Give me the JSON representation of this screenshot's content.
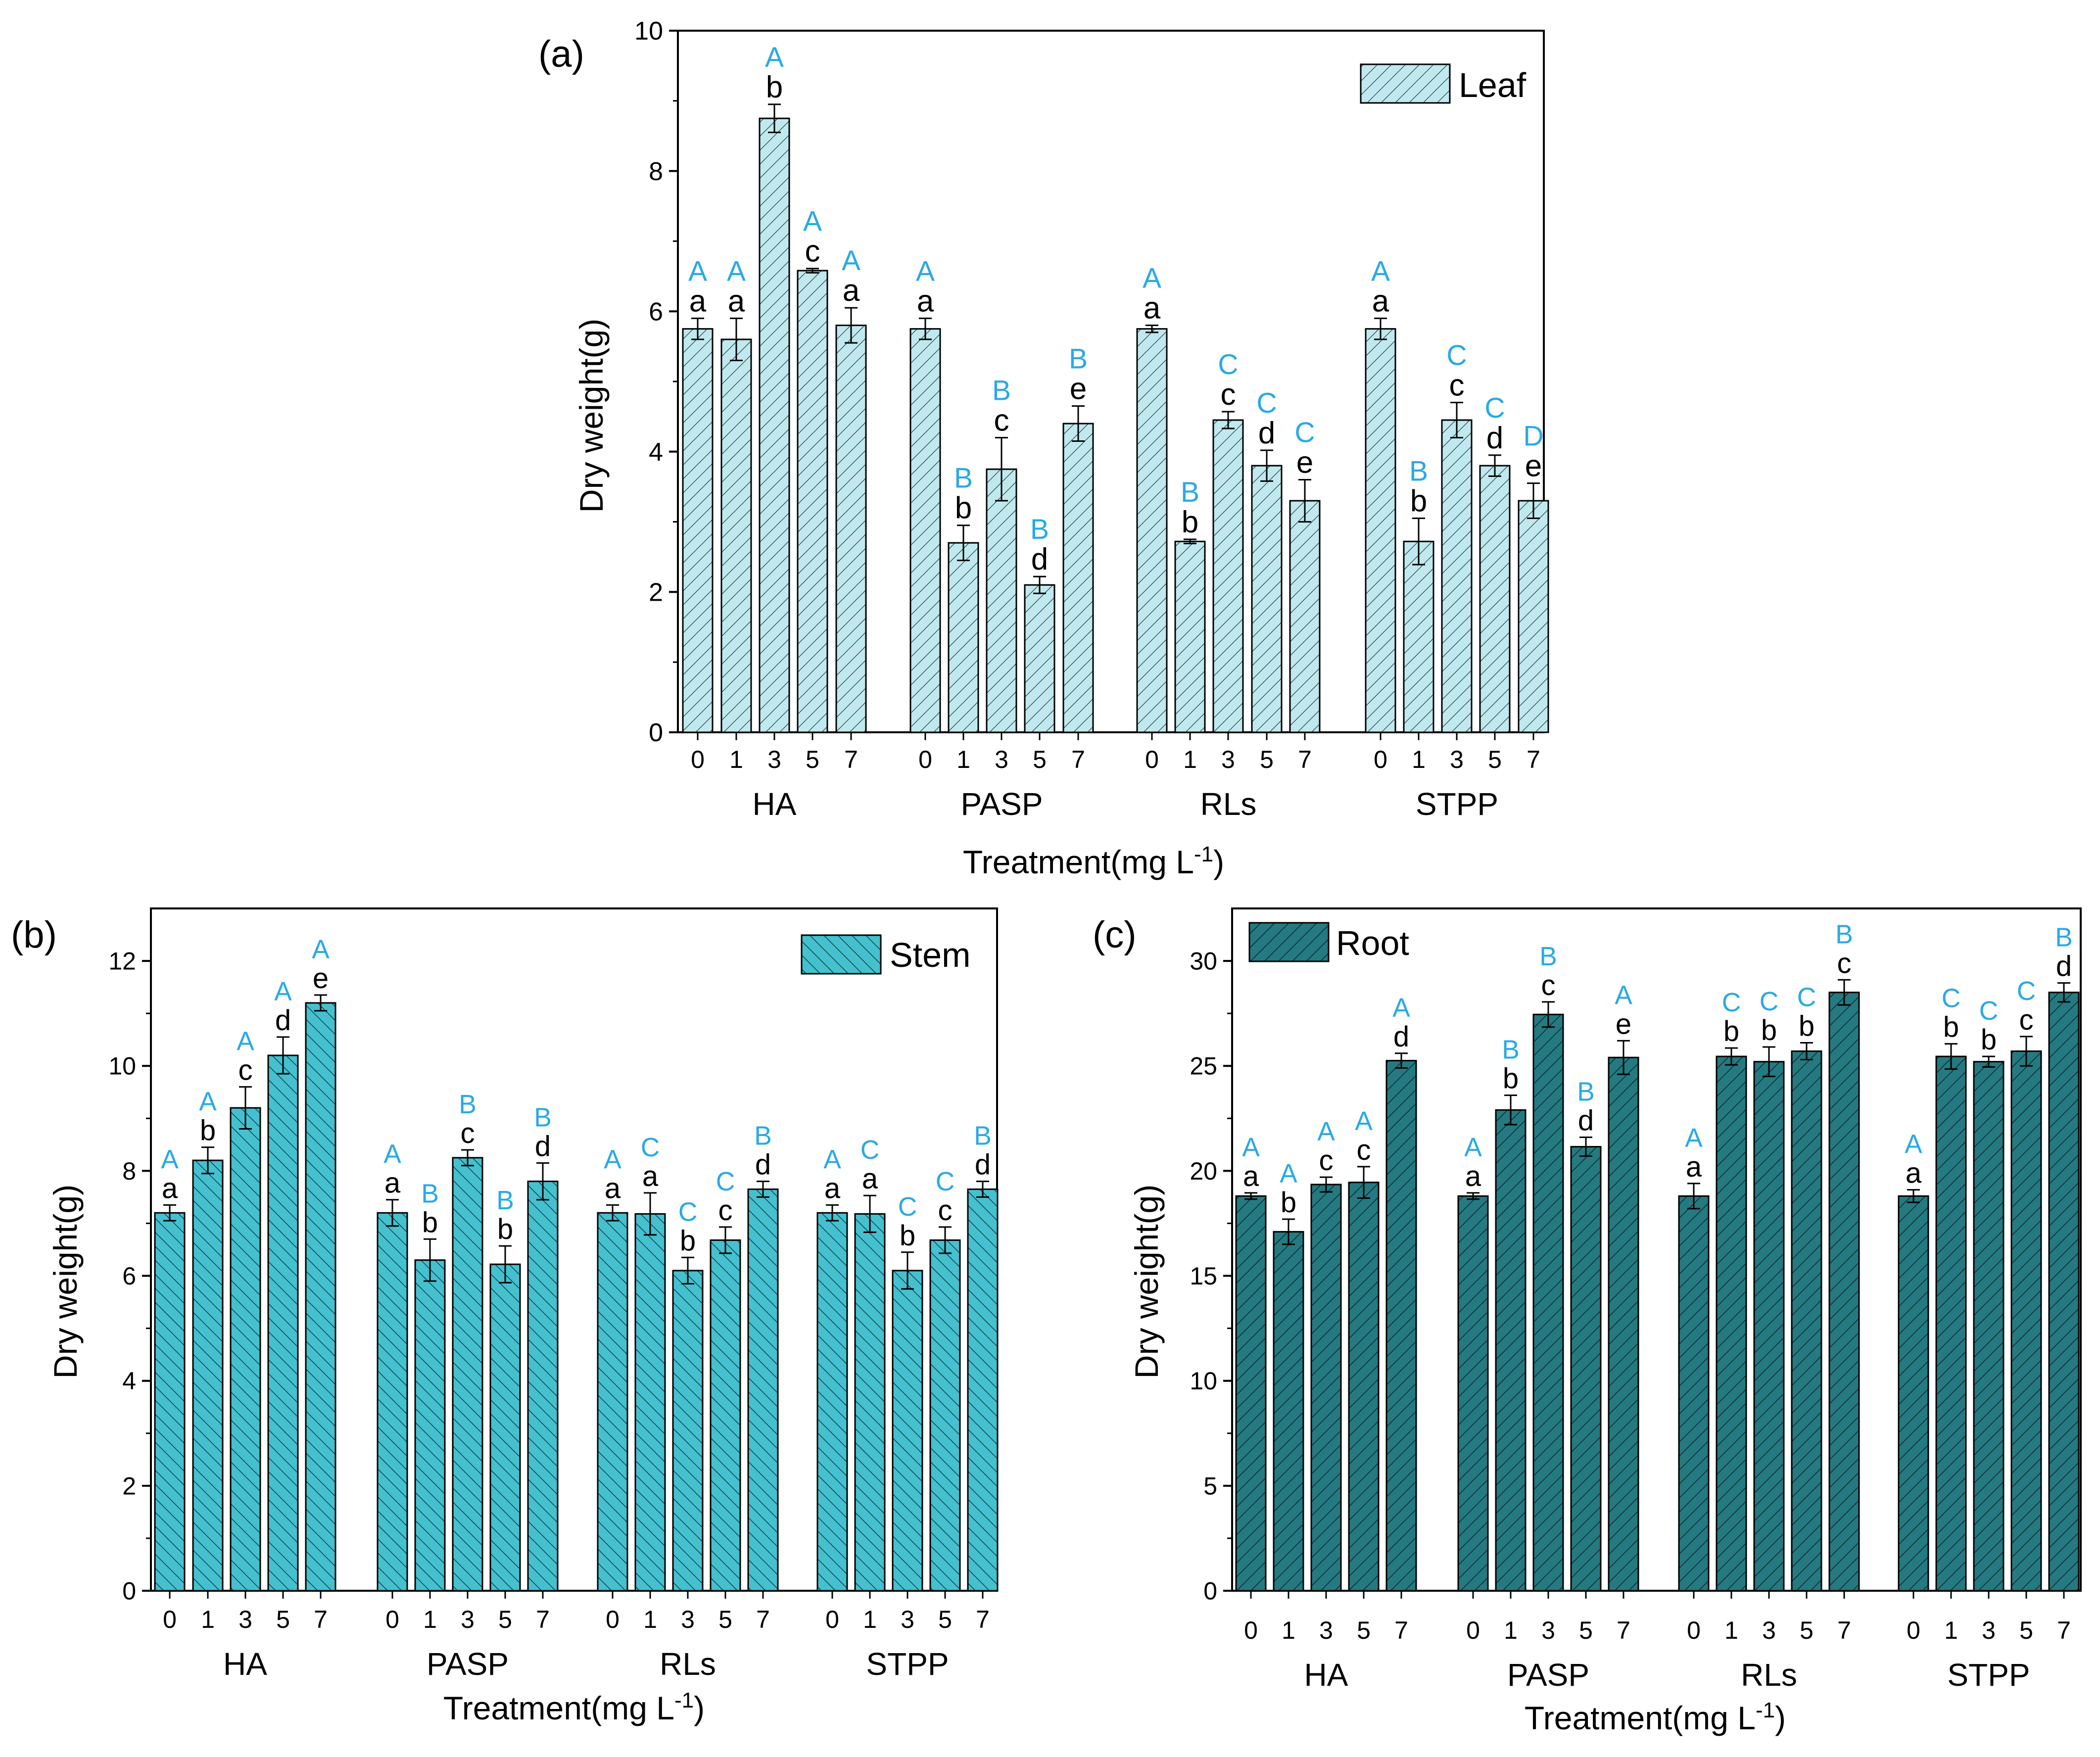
{
  "figure": {
    "treatment_axis_prefix": "Treatment(mg L",
    "treatment_axis_superscript": "-1",
    "treatment_axis_suffix": ")"
  },
  "colors": {
    "leaf": "#bfe9ee",
    "stem": "#45c0cf",
    "root": "#247a80",
    "letter_black": "#000000",
    "letter_blue": "#29a9e6"
  },
  "chart_data": [
    {
      "type": "bar",
      "panel_label": "(a)",
      "series_name": "Leaf",
      "legend_position": "top-right",
      "ylabel": "Dry weight(g)",
      "ylim": [
        0,
        10
      ],
      "yticks": [
        0,
        2,
        4,
        6,
        8,
        10
      ],
      "groups": [
        "HA",
        "PASP",
        "RLs",
        "STPP"
      ],
      "levels": [
        "0",
        "1",
        "3",
        "5",
        "7"
      ],
      "values": [
        [
          5.75,
          5.6,
          8.75,
          6.58,
          5.8
        ],
        [
          5.75,
          2.7,
          3.75,
          2.1,
          4.4
        ],
        [
          5.75,
          2.72,
          4.45,
          3.8,
          3.3
        ],
        [
          5.75,
          2.72,
          4.45,
          3.8,
          3.3
        ]
      ],
      "errors": [
        [
          0.15,
          0.3,
          0.2,
          0.03,
          0.25
        ],
        [
          0.15,
          0.25,
          0.45,
          0.12,
          0.25
        ],
        [
          0.05,
          0.03,
          0.12,
          0.22,
          0.3
        ],
        [
          0.15,
          0.33,
          0.25,
          0.15,
          0.25
        ]
      ],
      "letters_black": [
        [
          "a",
          "a",
          "b",
          "c",
          "a"
        ],
        [
          "a",
          "b",
          "c",
          "d",
          "e"
        ],
        [
          "a",
          "b",
          "c",
          "d",
          "e"
        ],
        [
          "a",
          "b",
          "c",
          "d",
          "e"
        ]
      ],
      "letters_blue": [
        [
          "A",
          "A",
          "A",
          "A",
          "A"
        ],
        [
          "A",
          "B",
          "B",
          "B",
          "B"
        ],
        [
          "A",
          "B",
          "C",
          "C",
          "C"
        ],
        [
          "A",
          "B",
          "C",
          "C",
          "D"
        ]
      ]
    },
    {
      "type": "bar",
      "panel_label": "(b)",
      "series_name": "Stem",
      "legend_position": "top-right",
      "ylabel": "Dry weight(g)",
      "ylim": [
        0,
        13
      ],
      "yticks": [
        0,
        2,
        4,
        6,
        8,
        10,
        12
      ],
      "groups": [
        "HA",
        "PASP",
        "RLs",
        "STPP"
      ],
      "levels": [
        "0",
        "1",
        "3",
        "5",
        "7"
      ],
      "values": [
        [
          7.2,
          8.2,
          9.2,
          10.2,
          11.2
        ],
        [
          7.2,
          6.3,
          8.25,
          6.22,
          7.8
        ],
        [
          7.2,
          7.18,
          6.1,
          6.68,
          7.65
        ],
        [
          7.2,
          7.18,
          6.1,
          6.68,
          7.65
        ]
      ],
      "errors": [
        [
          0.15,
          0.25,
          0.4,
          0.35,
          0.15
        ],
        [
          0.25,
          0.4,
          0.15,
          0.35,
          0.35
        ],
        [
          0.15,
          0.4,
          0.25,
          0.25,
          0.15
        ],
        [
          0.15,
          0.35,
          0.35,
          0.25,
          0.15
        ]
      ],
      "letters_black": [
        [
          "a",
          "b",
          "c",
          "d",
          "e"
        ],
        [
          "a",
          "b",
          "c",
          "b",
          "d"
        ],
        [
          "a",
          "a",
          "b",
          "c",
          "d"
        ],
        [
          "a",
          "a",
          "b",
          "c",
          "d"
        ]
      ],
      "letters_blue": [
        [
          "A",
          "A",
          "A",
          "A",
          "A"
        ],
        [
          "A",
          "B",
          "B",
          "B",
          "B"
        ],
        [
          "A",
          "C",
          "C",
          "C",
          "B"
        ],
        [
          "A",
          "C",
          "C",
          "C",
          "B"
        ]
      ]
    },
    {
      "type": "bar",
      "panel_label": "(c)",
      "series_name": "Root",
      "legend_position": "top-left",
      "ylabel": "Dry weight(g)",
      "ylim": [
        0,
        32.5
      ],
      "yticks": [
        0,
        5,
        10,
        15,
        20,
        25,
        30
      ],
      "groups": [
        "HA",
        "PASP",
        "RLs",
        "STPP"
      ],
      "levels": [
        "0",
        "1",
        "3",
        "5",
        "7"
      ],
      "values": [
        [
          18.8,
          17.1,
          19.35,
          19.45,
          25.25
        ],
        [
          18.8,
          22.9,
          27.45,
          21.15,
          25.4
        ],
        [
          18.8,
          25.45,
          25.2,
          25.7,
          28.5
        ],
        [
          18.8,
          25.45,
          25.2,
          25.7,
          28.5
        ]
      ],
      "errors": [
        [
          0.15,
          0.6,
          0.35,
          0.75,
          0.35
        ],
        [
          0.15,
          0.7,
          0.6,
          0.45,
          0.8
        ],
        [
          0.6,
          0.4,
          0.7,
          0.4,
          0.6
        ],
        [
          0.3,
          0.6,
          0.25,
          0.7,
          0.45
        ]
      ],
      "letters_black": [
        [
          "a",
          "b",
          "c",
          "c",
          "d"
        ],
        [
          "a",
          "b",
          "c",
          "d",
          "e"
        ],
        [
          "a",
          "b",
          "b",
          "b",
          "c"
        ],
        [
          "a",
          "b",
          "b",
          "c",
          "d"
        ]
      ],
      "letters_blue": [
        [
          "A",
          "A",
          "A",
          "A",
          "A"
        ],
        [
          "A",
          "B",
          "B",
          "B",
          "A"
        ],
        [
          "A",
          "C",
          "C",
          "C",
          "B"
        ],
        [
          "A",
          "C",
          "C",
          "C",
          "B"
        ]
      ]
    }
  ]
}
